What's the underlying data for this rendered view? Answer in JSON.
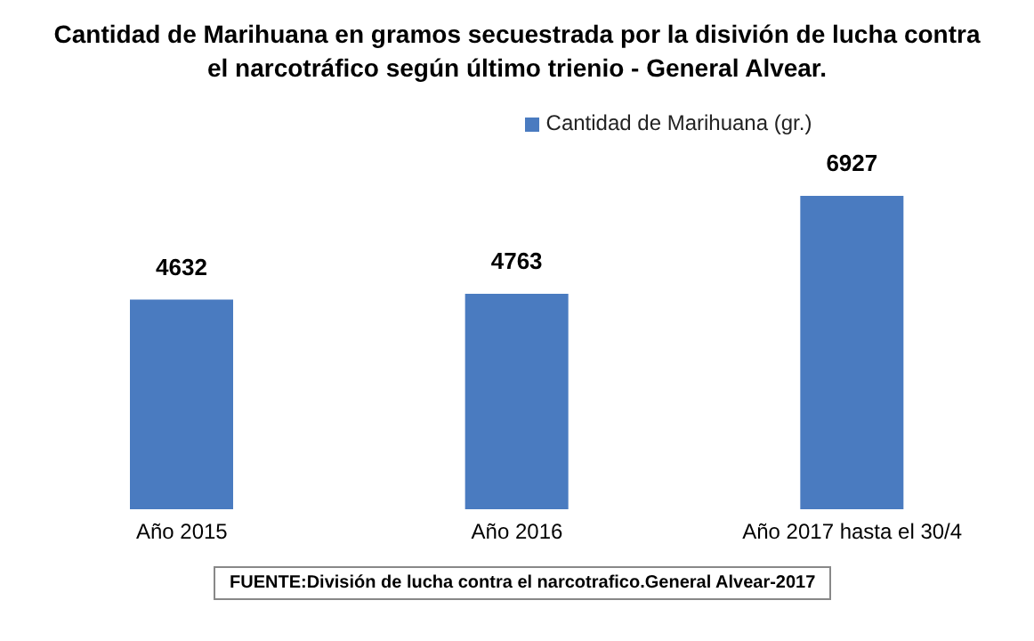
{
  "chart_data": {
    "type": "bar",
    "title": "Cantidad de Marihuana en gramos secuestrada por la disivión de lucha contra el narcotráfico según último trienio - General Alvear.",
    "categories": [
      "Año 2015",
      "Año 2016",
      "Año 2017 hasta el 30/4"
    ],
    "series": [
      {
        "name": "Cantidad de Marihuana (gr.)",
        "color": "#4a7bc0",
        "values": [
          4632,
          4763,
          6927
        ]
      }
    ],
    "data_labels": true,
    "legend": "top",
    "grid": false,
    "annotations": [
      "FUENTE:División de lucha contra el narcotrafico.General Alvear-2017"
    ]
  }
}
